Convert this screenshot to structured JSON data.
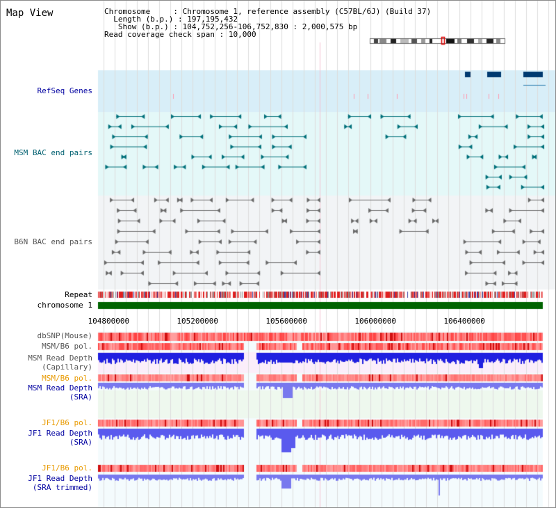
{
  "page": {
    "title": "Map View",
    "info": {
      "chromosome_label": "Chromosome",
      "chromosome_value": "Chromosome 1, reference assembly (C57BL/6J) (Build 37)",
      "length_label": "Length (b.p.)",
      "length_value": "197,195,432",
      "show_label": "Show (b.p.)",
      "show_value": "104,752,256-106,752,830 : 2,000,575 bp",
      "span_label": "Read coverage check span",
      "span_value": "10,000"
    }
  },
  "tracks": {
    "refseq": "RefSeq Genes",
    "msm_bac": "MSM BAC end pairs",
    "b6n_bac": "B6N BAC end pairs",
    "repeat": "Repeat",
    "chromosome": "chromosome 1",
    "dbsnp": "dbSNP(Mouse)",
    "msm_b6_pol_1": "MSM/B6 pol.",
    "msm_depth_cap_1": "MSM Read Depth",
    "msm_depth_cap_2": "(Capillary)",
    "msm_b6_pol_2": "MSM/B6 pol.",
    "msm_depth_sra_1": "MSM Read Depth",
    "msm_depth_sra_2": "(SRA)",
    "jf1_b6_pol_1": "JF1/B6 pol.",
    "jf1_depth_sra_1": "JF1 Read Depth",
    "jf1_depth_sra_2": "(SRA)",
    "jf1_b6_pol_2": "JF1/B6 pol.",
    "jf1_depth_trim_1": "JF1 Read Depth",
    "jf1_depth_trim_2": "(SRA trimmed)"
  },
  "axis": {
    "ticks": [
      "104800000",
      "105200000",
      "105600000",
      "106000000",
      "106400000"
    ],
    "tick_values": [
      104800000,
      105200000,
      105600000,
      106000000,
      106400000
    ],
    "start": 104752256,
    "end": 106752830
  },
  "colors": {
    "refseq_bg": "#d8eef8",
    "msm_bg": "#e4f8f8",
    "b6n_bg": "#f2f4f6",
    "chromosome_bar": "#006400",
    "gene_blue": "#003a70",
    "bac_teal": "#00707a",
    "bac_grey": "#6a6a6a",
    "depth_dark_blue": "#2020e0",
    "depth_light_blue": "#7878ee",
    "pol_red": "#f04040"
  }
}
